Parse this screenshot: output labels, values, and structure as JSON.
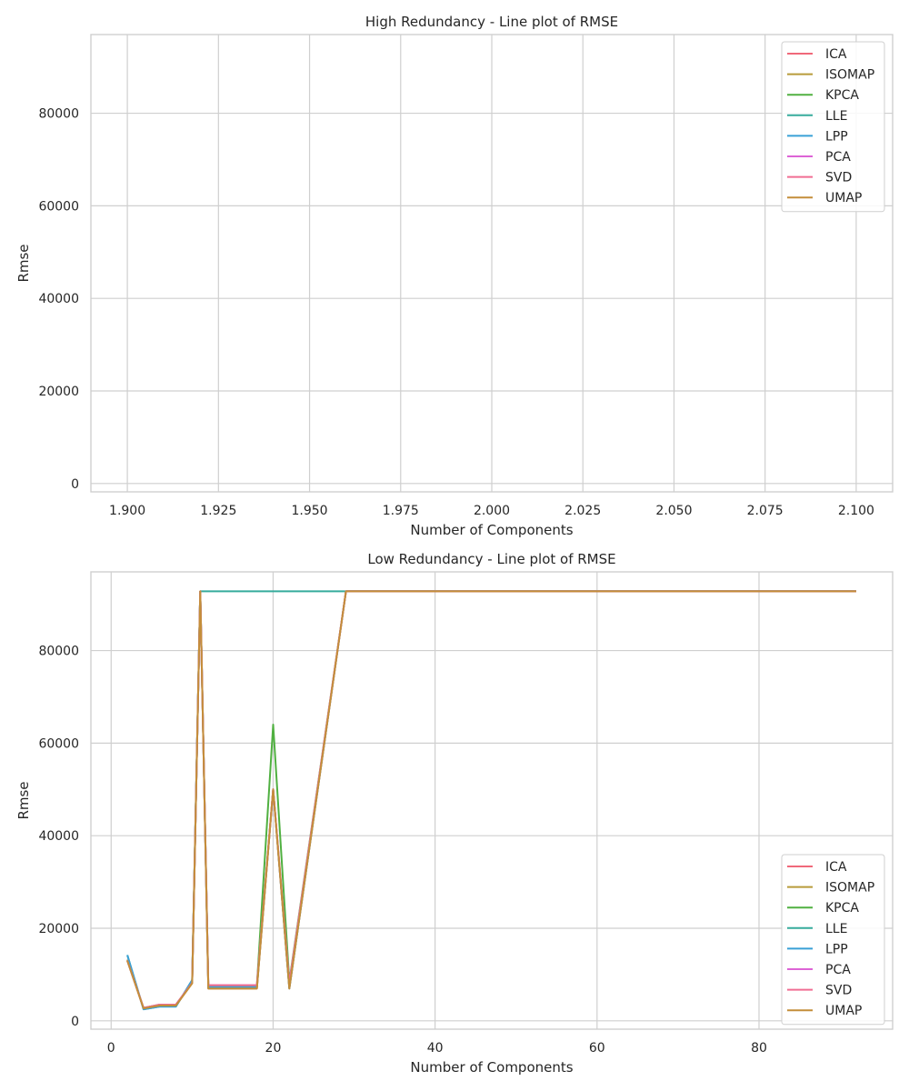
{
  "chart_data": [
    {
      "type": "line",
      "title": "High Redundancy - Line plot of RMSE",
      "xlabel": "Number of Components",
      "ylabel": "Rmse",
      "xlim": [
        1.89,
        2.11
      ],
      "ylim": [
        -1800,
        97000
      ],
      "xticks": [
        1.9,
        1.925,
        1.95,
        1.975,
        2.0,
        2.025,
        2.05,
        2.075,
        2.1
      ],
      "xtick_labels": [
        "1.900",
        "1.925",
        "1.950",
        "1.975",
        "2.000",
        "2.025",
        "2.050",
        "2.075",
        "2.100"
      ],
      "yticks": [
        0,
        20000,
        40000,
        60000,
        80000
      ],
      "ytick_labels": [
        "0",
        "20000",
        "40000",
        "60000",
        "80000"
      ],
      "grid": true,
      "legend_position": "top-right",
      "series": [
        {
          "name": "ICA",
          "color": "#f0697a",
          "x": [],
          "y": []
        },
        {
          "name": "ISOMAP",
          "color": "#b89b3a",
          "x": [],
          "y": []
        },
        {
          "name": "KPCA",
          "color": "#50b041",
          "x": [],
          "y": []
        },
        {
          "name": "LLE",
          "color": "#36ab9c",
          "x": [],
          "y": []
        },
        {
          "name": "LPP",
          "color": "#39a0d6",
          "x": [],
          "y": []
        },
        {
          "name": "PCA",
          "color": "#dd64d6",
          "x": [],
          "y": []
        },
        {
          "name": "SVD",
          "color": "#f06e93",
          "x": [],
          "y": []
        },
        {
          "name": "UMAP",
          "color": "#c48e3a",
          "x": [],
          "y": []
        }
      ]
    },
    {
      "type": "line",
      "title": "Low Redundancy - Line plot of RMSE",
      "xlabel": "Number of Components",
      "ylabel": "Rmse",
      "xlim": [
        -2.5,
        96.5
      ],
      "ylim": [
        -1800,
        97000
      ],
      "xticks": [
        0,
        20,
        40,
        60,
        80
      ],
      "xtick_labels": [
        "0",
        "20",
        "40",
        "60",
        "80"
      ],
      "yticks": [
        0,
        20000,
        40000,
        60000,
        80000
      ],
      "ytick_labels": [
        "0",
        "20000",
        "40000",
        "60000",
        "80000"
      ],
      "grid": true,
      "legend_position": "bottom-right",
      "series": [
        {
          "name": "ICA",
          "color": "#f0697a",
          "x": [
            2,
            4,
            6,
            8,
            10,
            11,
            12,
            18,
            20,
            22,
            29,
            92
          ],
          "y": [
            13200,
            2600,
            3200,
            3300,
            8200,
            92800,
            7000,
            7000,
            50000,
            7000,
            92800,
            92800
          ]
        },
        {
          "name": "ISOMAP",
          "color": "#b89b3a",
          "x": [
            2,
            4,
            6,
            8,
            10,
            11,
            12,
            18,
            20,
            22,
            29,
            92
          ],
          "y": [
            13200,
            2700,
            3300,
            3300,
            8300,
            92800,
            7000,
            7000,
            50000,
            7000,
            92800,
            92800
          ]
        },
        {
          "name": "KPCA",
          "color": "#50b041",
          "x": [
            2,
            4,
            6,
            8,
            10,
            11,
            12,
            18,
            20,
            22,
            29,
            92
          ],
          "y": [
            13000,
            2800,
            3500,
            3500,
            8200,
            92800,
            7600,
            7600,
            64000,
            8500,
            92800,
            92800
          ]
        },
        {
          "name": "LLE",
          "color": "#36ab9c",
          "x": [
            2,
            4,
            6,
            8,
            10,
            11,
            12,
            18,
            20,
            22,
            29,
            92
          ],
          "y": [
            14200,
            2500,
            3100,
            3100,
            8800,
            92800,
            92800,
            92800,
            92800,
            92800,
            92800,
            92800
          ]
        },
        {
          "name": "LPP",
          "color": "#39a0d6",
          "x": [
            2,
            4,
            6,
            8,
            10,
            11,
            12,
            18,
            20,
            22,
            29,
            92
          ],
          "y": [
            14200,
            2500,
            3100,
            3100,
            8800,
            92800,
            7300,
            7300,
            50000,
            7000,
            92800,
            92800
          ]
        },
        {
          "name": "PCA",
          "color": "#dd64d6",
          "x": [
            2,
            4,
            6,
            8,
            10,
            11,
            12,
            18,
            20,
            22,
            29,
            92
          ],
          "y": [
            13000,
            2800,
            3500,
            3500,
            8200,
            92800,
            7700,
            7700,
            50000,
            8000,
            92800,
            92800
          ]
        },
        {
          "name": "SVD",
          "color": "#f06e93",
          "x": [
            2,
            4,
            6,
            8,
            10,
            11,
            12,
            18,
            20,
            22,
            29,
            92
          ],
          "y": [
            13000,
            2800,
            3500,
            3500,
            8200,
            92800,
            7700,
            7700,
            50000,
            8000,
            92800,
            92800
          ]
        },
        {
          "name": "UMAP",
          "color": "#c48e3a",
          "x": [
            2,
            4,
            6,
            8,
            10,
            11,
            12,
            18,
            20,
            22,
            29,
            92
          ],
          "y": [
            13000,
            2700,
            3300,
            3300,
            8100,
            92800,
            7000,
            7000,
            50000,
            7000,
            92800,
            92800
          ]
        }
      ]
    }
  ]
}
